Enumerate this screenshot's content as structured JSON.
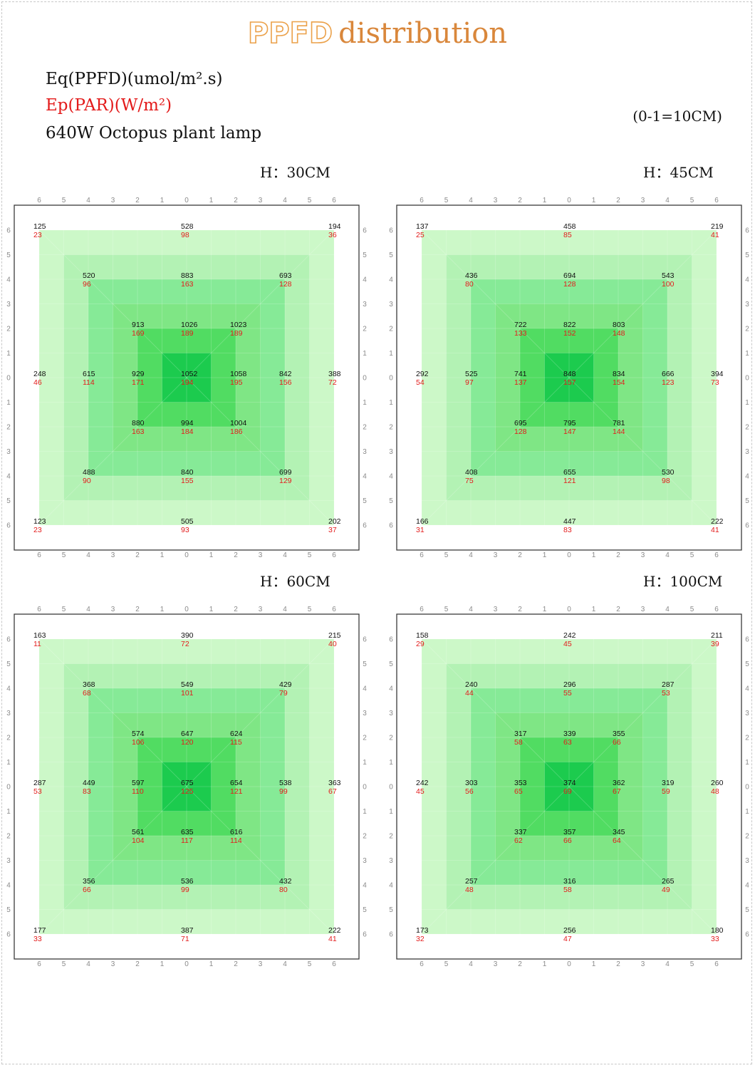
{
  "title": {
    "highlight": "PPFD",
    "rest": "distribution"
  },
  "legend": {
    "ppfd": "Eq(PPFD)(umol/m².s)",
    "par": "Ep(PAR)(W/m²)",
    "product": "640W Octopus plant lamp"
  },
  "scale_note": "(0-1=10CM)",
  "colors": {
    "ppfd_text": "#111111",
    "par_text": "#e31b1b",
    "title_orange": "#d9873b",
    "ring_6": "#ccf8c8",
    "ring_5": "#b3f2b4",
    "ring_4": "#86ea97",
    "ring_3": "#7fe685",
    "ring_2": "#51dc62",
    "ring_1": "#1ccb4e"
  },
  "chart_data": [
    {
      "type": "heatmap",
      "title": "H：30CM",
      "axis_ticks": [
        "6",
        "5",
        "4",
        "3",
        "2",
        "1",
        "0",
        "1",
        "2",
        "3",
        "4",
        "5",
        "6"
      ],
      "points": [
        {
          "x": -6,
          "y": 6,
          "ppfd": "125",
          "par": "23"
        },
        {
          "x": 0,
          "y": 6,
          "ppfd": "528",
          "par": "98"
        },
        {
          "x": 6,
          "y": 6,
          "ppfd": "194",
          "par": "36"
        },
        {
          "x": -4,
          "y": 4,
          "ppfd": "520",
          "par": "96"
        },
        {
          "x": 0,
          "y": 4,
          "ppfd": "883",
          "par": "163"
        },
        {
          "x": 4,
          "y": 4,
          "ppfd": "693",
          "par": "128"
        },
        {
          "x": -2,
          "y": 2,
          "ppfd": "913",
          "par": "169"
        },
        {
          "x": 0,
          "y": 2,
          "ppfd": "1026",
          "par": "189"
        },
        {
          "x": 2,
          "y": 2,
          "ppfd": "1023",
          "par": "189"
        },
        {
          "x": -6,
          "y": 0,
          "ppfd": "248",
          "par": "46"
        },
        {
          "x": -4,
          "y": 0,
          "ppfd": "615",
          "par": "114"
        },
        {
          "x": -2,
          "y": 0,
          "ppfd": "929",
          "par": "171"
        },
        {
          "x": 0,
          "y": 0,
          "ppfd": "1052",
          "par": "194"
        },
        {
          "x": 2,
          "y": 0,
          "ppfd": "1058",
          "par": "195"
        },
        {
          "x": 4,
          "y": 0,
          "ppfd": "842",
          "par": "156"
        },
        {
          "x": 6,
          "y": 0,
          "ppfd": "388",
          "par": "72"
        },
        {
          "x": -2,
          "y": -2,
          "ppfd": "880",
          "par": "163"
        },
        {
          "x": 0,
          "y": -2,
          "ppfd": "994",
          "par": "184"
        },
        {
          "x": 2,
          "y": -2,
          "ppfd": "1004",
          "par": "186"
        },
        {
          "x": -4,
          "y": -4,
          "ppfd": "488",
          "par": "90"
        },
        {
          "x": 0,
          "y": -4,
          "ppfd": "840",
          "par": "155"
        },
        {
          "x": 4,
          "y": -4,
          "ppfd": "699",
          "par": "129"
        },
        {
          "x": -6,
          "y": -6,
          "ppfd": "123",
          "par": "23"
        },
        {
          "x": 0,
          "y": -6,
          "ppfd": "505",
          "par": "93"
        },
        {
          "x": 6,
          "y": -6,
          "ppfd": "202",
          "par": "37"
        }
      ]
    },
    {
      "type": "heatmap",
      "title": "H：45CM",
      "axis_ticks": [
        "6",
        "5",
        "4",
        "3",
        "2",
        "1",
        "0",
        "1",
        "2",
        "3",
        "4",
        "5",
        "6"
      ],
      "points": [
        {
          "x": -6,
          "y": 6,
          "ppfd": "137",
          "par": "25"
        },
        {
          "x": 0,
          "y": 6,
          "ppfd": "458",
          "par": "85"
        },
        {
          "x": 6,
          "y": 6,
          "ppfd": "219",
          "par": "41"
        },
        {
          "x": -4,
          "y": 4,
          "ppfd": "436",
          "par": "80"
        },
        {
          "x": 0,
          "y": 4,
          "ppfd": "694",
          "par": "128"
        },
        {
          "x": 4,
          "y": 4,
          "ppfd": "543",
          "par": "100"
        },
        {
          "x": -2,
          "y": 2,
          "ppfd": "722",
          "par": "133"
        },
        {
          "x": 0,
          "y": 2,
          "ppfd": "822",
          "par": "152"
        },
        {
          "x": 2,
          "y": 2,
          "ppfd": "803",
          "par": "148"
        },
        {
          "x": -6,
          "y": 0,
          "ppfd": "292",
          "par": "54"
        },
        {
          "x": -4,
          "y": 0,
          "ppfd": "525",
          "par": "97"
        },
        {
          "x": -2,
          "y": 0,
          "ppfd": "741",
          "par": "137"
        },
        {
          "x": 0,
          "y": 0,
          "ppfd": "848",
          "par": "157"
        },
        {
          "x": 2,
          "y": 0,
          "ppfd": "834",
          "par": "154"
        },
        {
          "x": 4,
          "y": 0,
          "ppfd": "666",
          "par": "123"
        },
        {
          "x": 6,
          "y": 0,
          "ppfd": "394",
          "par": "73"
        },
        {
          "x": -2,
          "y": -2,
          "ppfd": "695",
          "par": "128"
        },
        {
          "x": 0,
          "y": -2,
          "ppfd": "795",
          "par": "147"
        },
        {
          "x": 2,
          "y": -2,
          "ppfd": "781",
          "par": "144"
        },
        {
          "x": -4,
          "y": -4,
          "ppfd": "408",
          "par": "75"
        },
        {
          "x": 0,
          "y": -4,
          "ppfd": "655",
          "par": "121"
        },
        {
          "x": 4,
          "y": -4,
          "ppfd": "530",
          "par": "98"
        },
        {
          "x": -6,
          "y": -6,
          "ppfd": "166",
          "par": "31"
        },
        {
          "x": 0,
          "y": -6,
          "ppfd": "447",
          "par": "83"
        },
        {
          "x": 6,
          "y": -6,
          "ppfd": "222",
          "par": "41"
        }
      ]
    },
    {
      "type": "heatmap",
      "title": "H：60CM",
      "axis_ticks": [
        "6",
        "5",
        "4",
        "3",
        "2",
        "1",
        "0",
        "1",
        "2",
        "3",
        "4",
        "5",
        "6"
      ],
      "points": [
        {
          "x": -6,
          "y": 6,
          "ppfd": "163",
          "par": "11"
        },
        {
          "x": 0,
          "y": 6,
          "ppfd": "390",
          "par": "72"
        },
        {
          "x": 6,
          "y": 6,
          "ppfd": "215",
          "par": "40"
        },
        {
          "x": -4,
          "y": 4,
          "ppfd": "368",
          "par": "68"
        },
        {
          "x": 0,
          "y": 4,
          "ppfd": "549",
          "par": "101"
        },
        {
          "x": 4,
          "y": 4,
          "ppfd": "429",
          "par": "79"
        },
        {
          "x": -2,
          "y": 2,
          "ppfd": "574",
          "par": "106"
        },
        {
          "x": 0,
          "y": 2,
          "ppfd": "647",
          "par": "120"
        },
        {
          "x": 2,
          "y": 2,
          "ppfd": "624",
          "par": "115"
        },
        {
          "x": -6,
          "y": 0,
          "ppfd": "287",
          "par": "53"
        },
        {
          "x": -4,
          "y": 0,
          "ppfd": "449",
          "par": "83"
        },
        {
          "x": -2,
          "y": 0,
          "ppfd": "597",
          "par": "110"
        },
        {
          "x": 0,
          "y": 0,
          "ppfd": "675",
          "par": "125"
        },
        {
          "x": 2,
          "y": 0,
          "ppfd": "654",
          "par": "121"
        },
        {
          "x": 4,
          "y": 0,
          "ppfd": "538",
          "par": "99"
        },
        {
          "x": 6,
          "y": 0,
          "ppfd": "363",
          "par": "67"
        },
        {
          "x": -2,
          "y": -2,
          "ppfd": "561",
          "par": "104"
        },
        {
          "x": 0,
          "y": -2,
          "ppfd": "635",
          "par": "117"
        },
        {
          "x": 2,
          "y": -2,
          "ppfd": "616",
          "par": "114"
        },
        {
          "x": -4,
          "y": -4,
          "ppfd": "356",
          "par": "66"
        },
        {
          "x": 0,
          "y": -4,
          "ppfd": "536",
          "par": "99"
        },
        {
          "x": 4,
          "y": -4,
          "ppfd": "432",
          "par": "80"
        },
        {
          "x": -6,
          "y": -6,
          "ppfd": "177",
          "par": "33"
        },
        {
          "x": 0,
          "y": -6,
          "ppfd": "387",
          "par": "71"
        },
        {
          "x": 6,
          "y": -6,
          "ppfd": "222",
          "par": "41"
        }
      ]
    },
    {
      "type": "heatmap",
      "title": "H：100CM",
      "axis_ticks": [
        "6",
        "5",
        "4",
        "3",
        "2",
        "1",
        "0",
        "1",
        "2",
        "3",
        "4",
        "5",
        "6"
      ],
      "points": [
        {
          "x": -6,
          "y": 6,
          "ppfd": "158",
          "par": "29"
        },
        {
          "x": 0,
          "y": 6,
          "ppfd": "242",
          "par": "45"
        },
        {
          "x": 6,
          "y": 6,
          "ppfd": "211",
          "par": "39"
        },
        {
          "x": -4,
          "y": 4,
          "ppfd": "240",
          "par": "44"
        },
        {
          "x": 0,
          "y": 4,
          "ppfd": "296",
          "par": "55"
        },
        {
          "x": 4,
          "y": 4,
          "ppfd": "287",
          "par": "53"
        },
        {
          "x": -2,
          "y": 2,
          "ppfd": "317",
          "par": "58"
        },
        {
          "x": 0,
          "y": 2,
          "ppfd": "339",
          "par": "63"
        },
        {
          "x": 2,
          "y": 2,
          "ppfd": "355",
          "par": "66"
        },
        {
          "x": -6,
          "y": 0,
          "ppfd": "242",
          "par": "45"
        },
        {
          "x": -4,
          "y": 0,
          "ppfd": "303",
          "par": "56"
        },
        {
          "x": -2,
          "y": 0,
          "ppfd": "353",
          "par": "65"
        },
        {
          "x": 0,
          "y": 0,
          "ppfd": "374",
          "par": "69"
        },
        {
          "x": 2,
          "y": 0,
          "ppfd": "362",
          "par": "67"
        },
        {
          "x": 4,
          "y": 0,
          "ppfd": "319",
          "par": "59"
        },
        {
          "x": 6,
          "y": 0,
          "ppfd": "260",
          "par": "48"
        },
        {
          "x": -2,
          "y": -2,
          "ppfd": "337",
          "par": "62"
        },
        {
          "x": 0,
          "y": -2,
          "ppfd": "357",
          "par": "66"
        },
        {
          "x": 2,
          "y": -2,
          "ppfd": "345",
          "par": "64"
        },
        {
          "x": -4,
          "y": -4,
          "ppfd": "257",
          "par": "48"
        },
        {
          "x": 0,
          "y": -4,
          "ppfd": "316",
          "par": "58"
        },
        {
          "x": 4,
          "y": -4,
          "ppfd": "265",
          "par": "49"
        },
        {
          "x": -6,
          "y": -6,
          "ppfd": "173",
          "par": "32"
        },
        {
          "x": 0,
          "y": -6,
          "ppfd": "256",
          "par": "47"
        },
        {
          "x": 6,
          "y": -6,
          "ppfd": "180",
          "par": "33"
        }
      ]
    }
  ]
}
